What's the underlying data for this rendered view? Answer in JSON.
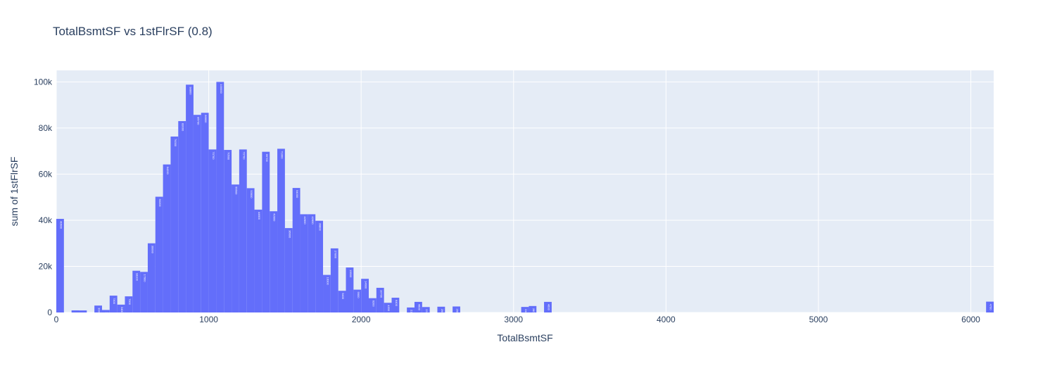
{
  "chart_data": {
    "type": "histogram",
    "title": "TotalBsmtSF vs 1stFlrSF (0.8)",
    "x_label": "TotalBsmtSF",
    "y_label": "sum of 1stFlrSF",
    "color": "#636efa",
    "bins": [
      0,
      50,
      100,
      150,
      200,
      250,
      300,
      350,
      400,
      450,
      500,
      550,
      600,
      650,
      700,
      750,
      800,
      850,
      900,
      950,
      1000,
      1050,
      1100,
      1150,
      1200,
      1250,
      1300,
      1350,
      1400,
      1450,
      1500,
      1550,
      1600,
      1650,
      1700,
      1750,
      1800,
      1850,
      1900,
      1950,
      2000,
      2050,
      2100,
      2150,
      2200,
      2250,
      2300,
      2350,
      2400,
      2450,
      2500,
      2550,
      2600,
      2650,
      2700,
      2750,
      2800,
      2850,
      2900,
      2950,
      3000,
      3050,
      3100,
      3150,
      3200,
      3250,
      3300,
      3350,
      3400,
      3450,
      3500,
      3550,
      3600,
      3650,
      3700,
      3750,
      3800,
      3850,
      3900,
      3950,
      4000,
      4050,
      4100,
      4150,
      4200,
      4250,
      4300,
      4350,
      4400,
      4450,
      4500,
      4550,
      4600,
      4650,
      4700,
      4750,
      4800,
      4850,
      4900,
      4950,
      5000,
      5050,
      5100,
      5150,
      5200,
      5250,
      5300,
      5350,
      5400,
      5450,
      5500,
      5550,
      5600,
      5650,
      5700,
      5750,
      5800,
      5850,
      5900,
      5950,
      6000,
      6050,
      6100,
      6150
    ],
    "values": [
      40600,
      0,
      910,
      886,
      0,
      3000,
      1088,
      7300,
      3400,
      7000,
      18100,
      17600,
      30000,
      50200,
      64200,
      76300,
      83000,
      98800,
      85700,
      86600,
      70700,
      100000,
      70500,
      55500,
      70700,
      53900,
      44600,
      69700,
      43900,
      71000,
      36600,
      54000,
      42600,
      42600,
      39800,
      16300,
      27800,
      9400,
      19500,
      9900,
      14600,
      6200,
      10700,
      4200,
      6400,
      0,
      2164,
      4600,
      2359,
      0,
      2500,
      0,
      2600,
      0,
      0,
      0,
      0,
      0,
      0,
      0,
      0,
      2402,
      2800,
      0,
      4600,
      0,
      0,
      0,
      0,
      0,
      0,
      0,
      0,
      0,
      0,
      0,
      0,
      0,
      0,
      0,
      0,
      0,
      0,
      0,
      0,
      0,
      0,
      0,
      0,
      0,
      0,
      0,
      0,
      0,
      0,
      0,
      0,
      0,
      0,
      0,
      0,
      0,
      0,
      0,
      0,
      0,
      0,
      0,
      0,
      0,
      0,
      0,
      0,
      0,
      0,
      0,
      0,
      0,
      0,
      0,
      0,
      0,
      4700
    ],
    "xlim": [
      0,
      6150
    ],
    "xticks": [
      0,
      1000,
      2000,
      3000,
      4000,
      5000,
      6000
    ],
    "ylim": [
      0,
      105000
    ],
    "yticks": [
      0,
      {
        "value": 20000,
        "label": "20k"
      },
      {
        "value": 40000,
        "label": "40k"
      },
      {
        "value": 60000,
        "label": "60k"
      },
      {
        "value": 80000,
        "label": "80k"
      },
      {
        "value": 100000,
        "label": "100k"
      }
    ],
    "grid": true
  }
}
